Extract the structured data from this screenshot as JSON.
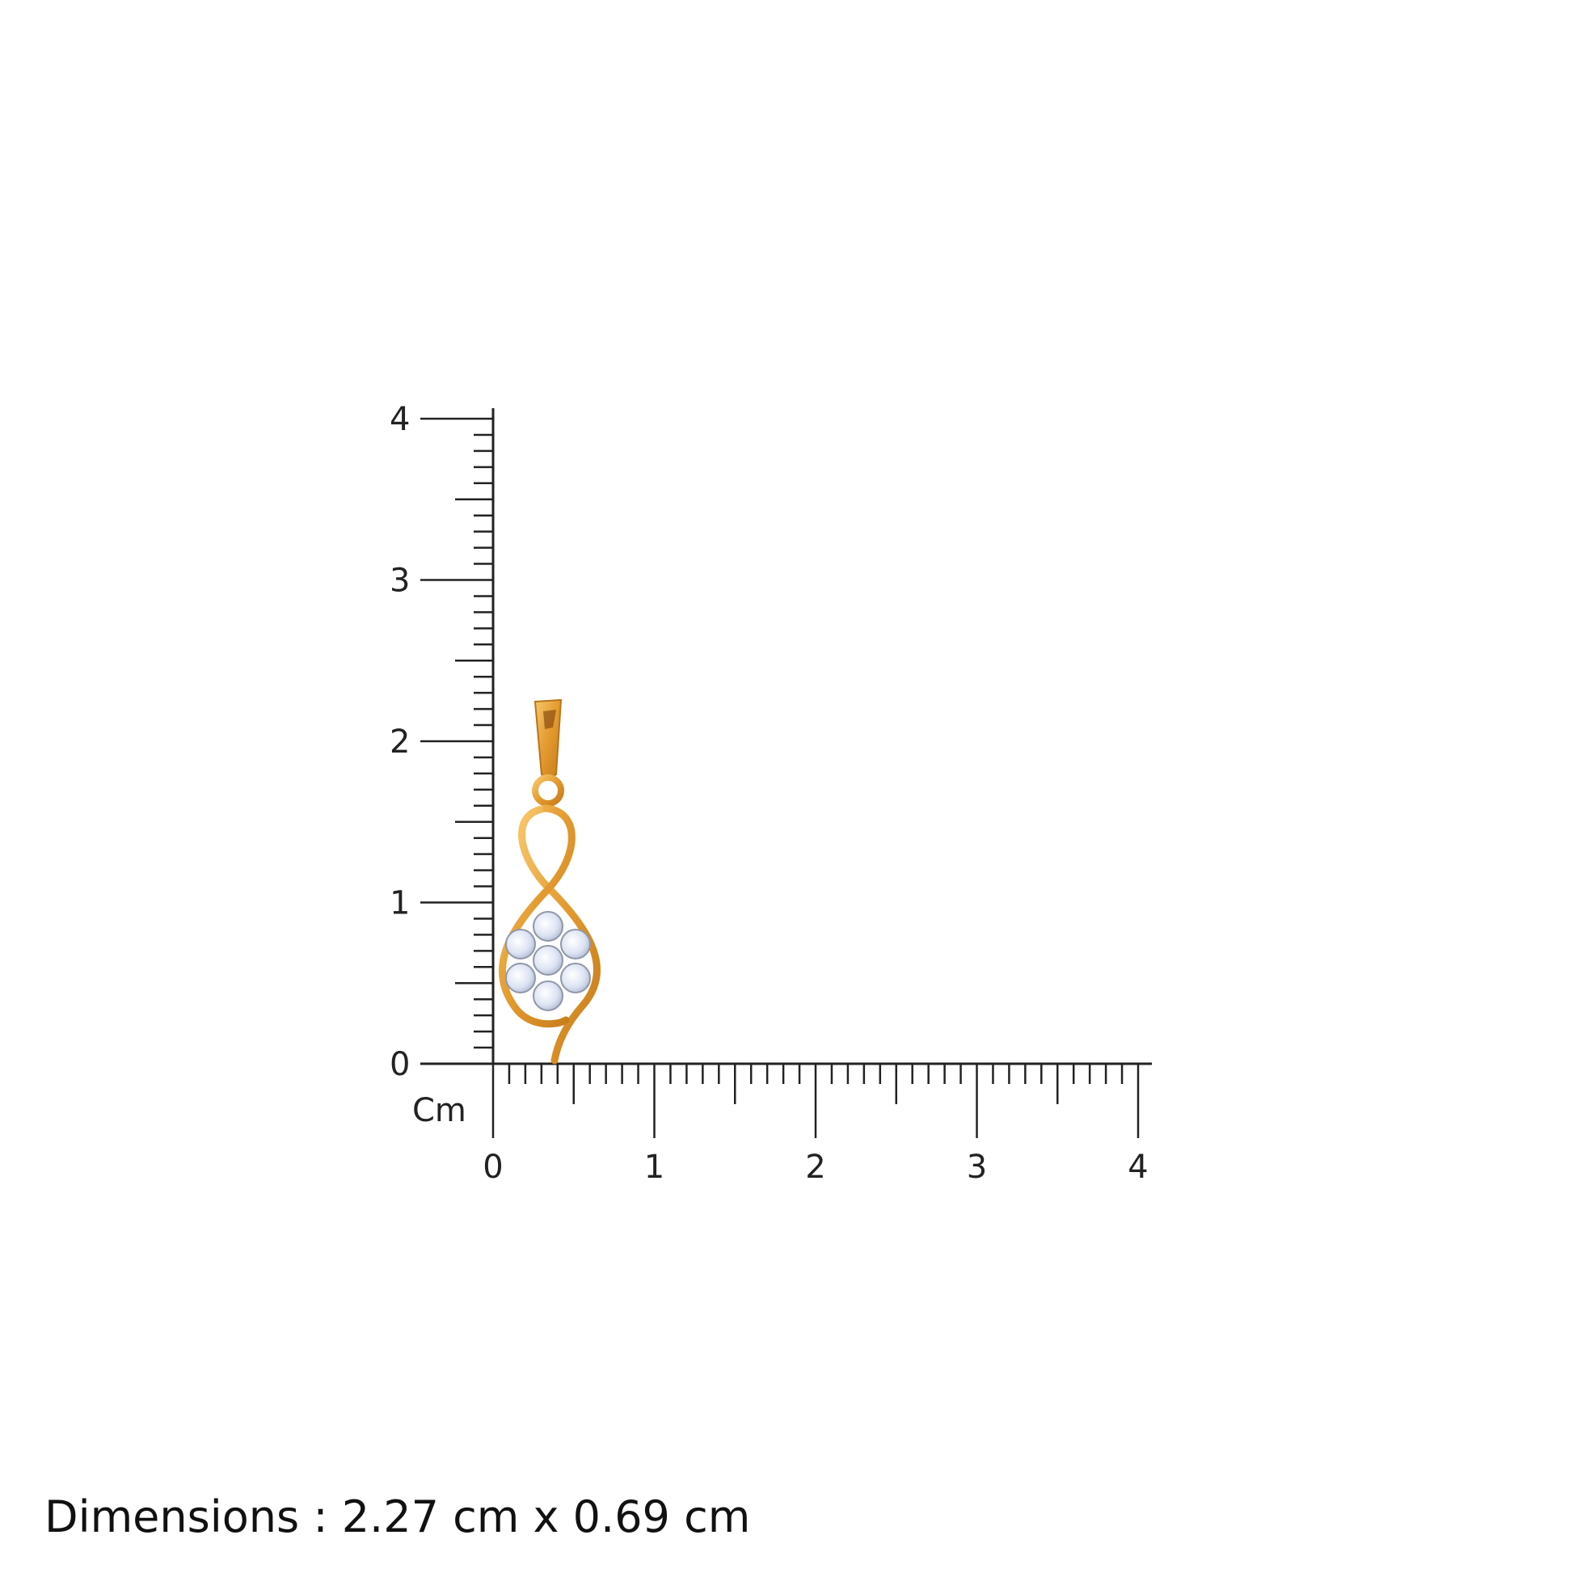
{
  "ruler": {
    "unit_label": "Cm",
    "vertical_labels": [
      "0",
      "1",
      "2",
      "3",
      "4"
    ],
    "horizontal_labels": [
      "0",
      "1",
      "2",
      "3",
      "4"
    ],
    "range_cm": [
      0,
      4
    ],
    "minor_step_cm": 0.1,
    "line_color": "#222222"
  },
  "product": {
    "icon": "gold-diamond-pendant-image",
    "metal_color": "#E8A23A",
    "stone_color": "#DDE4F2"
  },
  "dimensions_text": "Dimensions : 2.27 cm x 0.69 cm"
}
